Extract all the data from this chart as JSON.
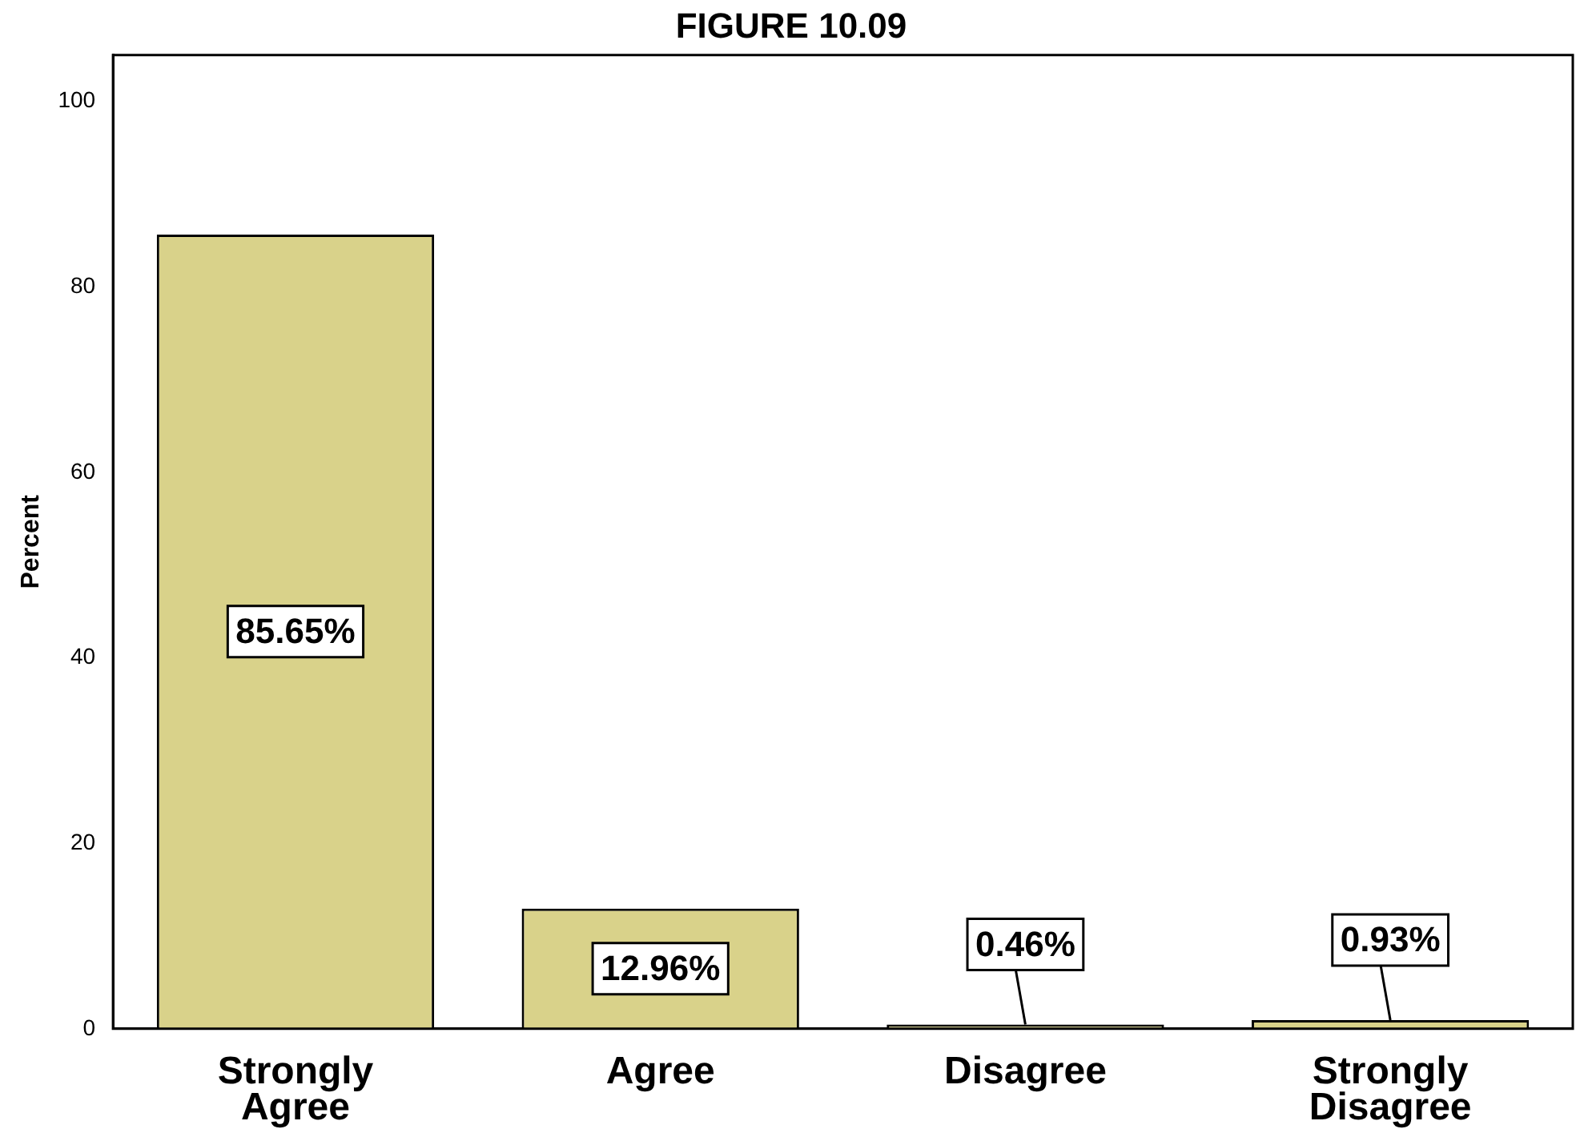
{
  "chart_data": {
    "type": "bar",
    "title": "FIGURE 10.09",
    "ylabel": "Percent",
    "categories": [
      "Strongly Agree",
      "Agree",
      "Disagree",
      "Strongly Disagree"
    ],
    "values": [
      85.65,
      12.96,
      0.46,
      0.93
    ],
    "value_labels": [
      "85.65%",
      "12.96%",
      "0.46%",
      "0.93%"
    ],
    "color": "#d9d28a",
    "ylim": [
      0,
      105
    ],
    "yticks": [
      0,
      20,
      40,
      60,
      80,
      100
    ],
    "grid": false,
    "legend": false
  }
}
